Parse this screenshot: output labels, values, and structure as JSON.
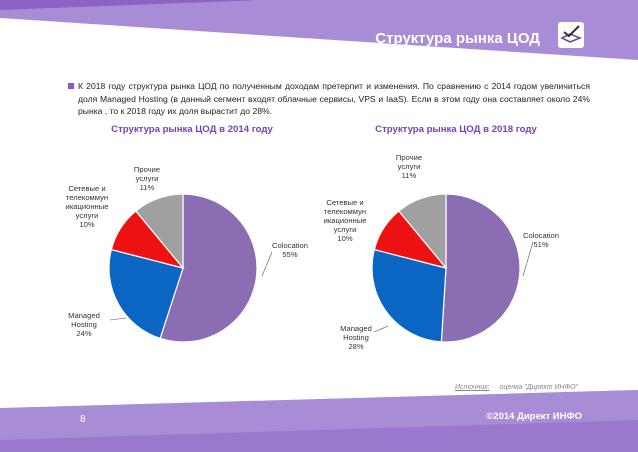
{
  "header": {
    "title": "Структура рынка ЦОД",
    "logo": "tick-book-logo-icon"
  },
  "bullet": {
    "text": "К 2018 году структура рынка ЦОД по полученным доходам претерпит и изменения. По сравнению с 2014 годом увеличиться доля Managed Hosting (в данный сегмент входят облачные сервисы, VPS и IaaS). Если в этом году она составляет около 24% рынка , то к 2018 году их доля вырастит до 28%."
  },
  "colors": {
    "band": "#a98cd6",
    "band_dark": "#8a63c4",
    "colocation": "#8b6db3",
    "managed_hosting": "#0a66c2",
    "network": "#ee1111",
    "other": "#a0a0a0"
  },
  "chart_data": [
    {
      "type": "pie",
      "title": "Структура рынка ЦОД в 2014 году",
      "slices": [
        {
          "label": [
            "Colocation"
          ],
          "value": 55
        },
        {
          "label": [
            "Managed",
            "Hosting"
          ],
          "value": 24
        },
        {
          "label": [
            "Сетевые и",
            "телекоммун",
            "икационные",
            "услуги"
          ],
          "value": 10
        },
        {
          "label": [
            "Прочие",
            "услуги"
          ],
          "value": 11
        }
      ]
    },
    {
      "type": "pie",
      "title": "Структура рынка ЦОД в 2018 году",
      "slices": [
        {
          "label": [
            "Colocation"
          ],
          "value": 51
        },
        {
          "label": [
            "Managed",
            "Hosting"
          ],
          "value": 28
        },
        {
          "label": [
            "Сетевые и",
            "телекоммун",
            "икационные",
            "услуги"
          ],
          "value": 10
        },
        {
          "label": [
            "Прочие",
            "услуги"
          ],
          "value": 11
        }
      ]
    }
  ],
  "footer": {
    "source_label": "Источник:",
    "source_text": "оценка \"Директ ИНФО\"",
    "page_number": "8",
    "copyright": "©2014 Директ ИНФО"
  }
}
